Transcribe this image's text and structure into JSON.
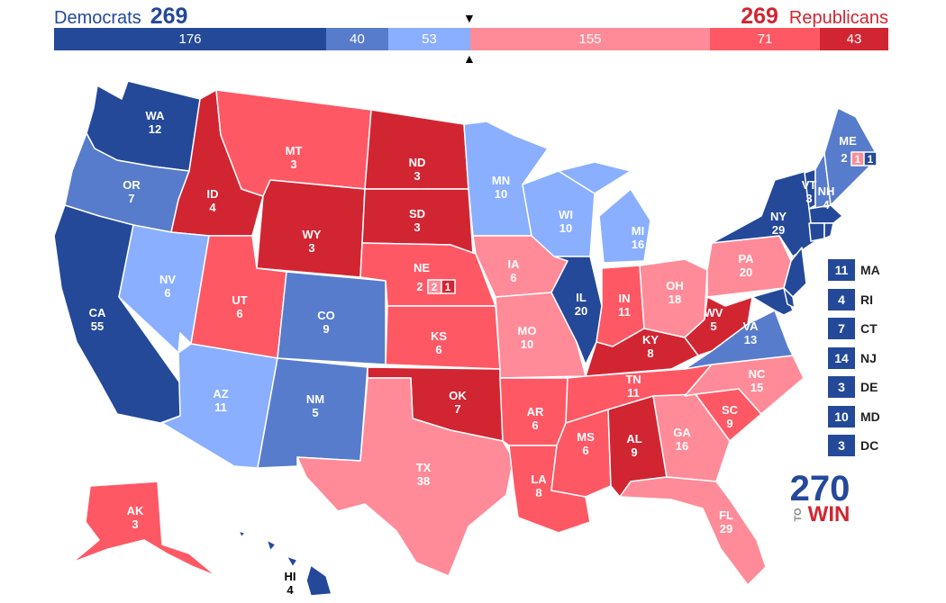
{
  "header": {
    "dem_label": "Democrats",
    "dem_total": "269",
    "rep_label": "Republicans",
    "rep_total": "269"
  },
  "bar": [
    {
      "value": "176",
      "color": "#244999",
      "category": "safe-dem"
    },
    {
      "value": "40",
      "color": "#577ccc",
      "category": "likely-dem"
    },
    {
      "value": "53",
      "color": "#8aafff",
      "category": "lean-dem"
    },
    {
      "value": "155",
      "color": "#ff8b98",
      "category": "lean-rep"
    },
    {
      "value": "71",
      "color": "#ff5865",
      "category": "likely-rep"
    },
    {
      "value": "43",
      "color": "#d22532",
      "category": "safe-rep"
    }
  ],
  "states": {
    "WA": {
      "abbr": "WA",
      "ev": "12"
    },
    "OR": {
      "abbr": "OR",
      "ev": "7"
    },
    "CA": {
      "abbr": "CA",
      "ev": "55"
    },
    "ID": {
      "abbr": "ID",
      "ev": "4"
    },
    "NV": {
      "abbr": "NV",
      "ev": "6"
    },
    "MT": {
      "abbr": "MT",
      "ev": "3"
    },
    "WY": {
      "abbr": "WY",
      "ev": "3"
    },
    "UT": {
      "abbr": "UT",
      "ev": "6"
    },
    "AZ": {
      "abbr": "AZ",
      "ev": "11"
    },
    "CO": {
      "abbr": "CO",
      "ev": "9"
    },
    "NM": {
      "abbr": "NM",
      "ev": "5"
    },
    "ND": {
      "abbr": "ND",
      "ev": "3"
    },
    "SD": {
      "abbr": "SD",
      "ev": "3"
    },
    "NE": {
      "abbr": "NE",
      "ev": "2",
      "d1": "2",
      "d2": "1"
    },
    "KS": {
      "abbr": "KS",
      "ev": "6"
    },
    "OK": {
      "abbr": "OK",
      "ev": "7"
    },
    "TX": {
      "abbr": "TX",
      "ev": "38"
    },
    "MN": {
      "abbr": "MN",
      "ev": "10"
    },
    "IA": {
      "abbr": "IA",
      "ev": "6"
    },
    "MO": {
      "abbr": "MO",
      "ev": "10"
    },
    "AR": {
      "abbr": "AR",
      "ev": "6"
    },
    "LA": {
      "abbr": "LA",
      "ev": "8"
    },
    "WI": {
      "abbr": "WI",
      "ev": "10"
    },
    "IL": {
      "abbr": "IL",
      "ev": "20"
    },
    "MI": {
      "abbr": "MI",
      "ev": "16"
    },
    "IN": {
      "abbr": "IN",
      "ev": "11"
    },
    "OH": {
      "abbr": "OH",
      "ev": "18"
    },
    "KY": {
      "abbr": "KY",
      "ev": "8"
    },
    "TN": {
      "abbr": "TN",
      "ev": "11"
    },
    "MS": {
      "abbr": "MS",
      "ev": "6"
    },
    "AL": {
      "abbr": "AL",
      "ev": "9"
    },
    "GA": {
      "abbr": "GA",
      "ev": "16"
    },
    "FL": {
      "abbr": "FL",
      "ev": "29"
    },
    "SC": {
      "abbr": "SC",
      "ev": "9"
    },
    "NC": {
      "abbr": "NC",
      "ev": "15"
    },
    "VA": {
      "abbr": "VA",
      "ev": "13"
    },
    "WV": {
      "abbr": "WV",
      "ev": "5"
    },
    "PA": {
      "abbr": "PA",
      "ev": "20"
    },
    "NY": {
      "abbr": "NY",
      "ev": "29"
    },
    "VT": {
      "abbr": "VT",
      "ev": "3"
    },
    "NH": {
      "abbr": "NH",
      "ev": "4"
    },
    "ME": {
      "abbr": "ME",
      "ev": "2",
      "d1": "1",
      "d2": "1"
    },
    "AK": {
      "abbr": "AK",
      "ev": "3"
    },
    "HI": {
      "abbr": "HI",
      "ev": "4"
    }
  },
  "small_states": [
    {
      "ev": "11",
      "name": "MA"
    },
    {
      "ev": "4",
      "name": "RI"
    },
    {
      "ev": "7",
      "name": "CT"
    },
    {
      "ev": "14",
      "name": "NJ"
    },
    {
      "ev": "3",
      "name": "DE"
    },
    {
      "ev": "10",
      "name": "MD"
    },
    {
      "ev": "3",
      "name": "DC"
    }
  ],
  "logo": {
    "number": "270",
    "to": "TO",
    "win": "WIN"
  }
}
